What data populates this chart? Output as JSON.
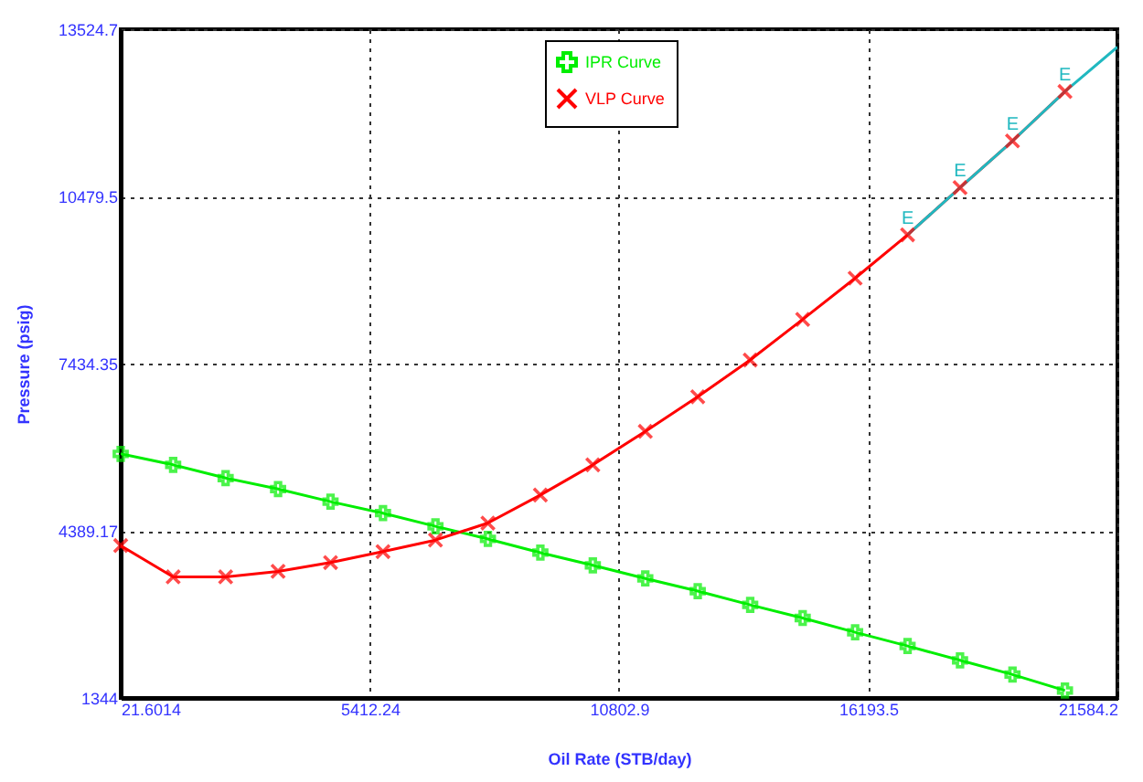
{
  "chart_data": {
    "type": "line",
    "xlabel": "Oil Rate  (STB/day)",
    "ylabel": "Pressure  (psig)",
    "xlim": [
      21.6014,
      21584.2
    ],
    "xticks": [
      21.6014,
      5412.24,
      10802.9,
      16193.5,
      21584.2
    ],
    "ylim": [
      1344,
      13524.7
    ],
    "yticks": [
      1344,
      4389.17,
      7434.35,
      10479.5,
      13524.7
    ],
    "x": [
      21.6014,
      1156.5,
      2291.4,
      3426.3,
      4561.2,
      5696.1,
      6831,
      7965.9,
      9100.8,
      10235.7,
      11370.6,
      12505.5,
      13640.4,
      14775.3,
      15910.2,
      17045.1,
      18180,
      19314.9,
      20449.8
    ],
    "series": [
      {
        "name": "IPR Curve",
        "color": "#00ee00",
        "marker": "cross",
        "values": [
          5790,
          5590,
          5350,
          5150,
          4920,
          4710,
          4470,
          4240,
          3990,
          3760,
          3520,
          3290,
          3040,
          2800,
          2540,
          2290,
          2030,
          1770,
          1480
        ]
      },
      {
        "name": "VLP Curve",
        "color": "#ff0000",
        "marker": "x",
        "values": [
          4120,
          3550,
          3550,
          3650,
          3810,
          4010,
          4220,
          4530,
          5040,
          5590,
          6200,
          6830,
          7500,
          8240,
          8990,
          9780,
          10640,
          11490,
          12390
        ]
      },
      {
        "color": "#20b8c0",
        "marker": "none",
        "x": [
          17045.1,
          18180,
          19314.9,
          20449.8,
          21584.2
        ],
        "values": [
          9780,
          10640,
          11490,
          12390,
          13200
        ]
      }
    ],
    "annotations": [
      {
        "text": "E",
        "x": 17045.1,
        "y": 9780
      },
      {
        "text": "E",
        "x": 18180,
        "y": 10640
      },
      {
        "text": "E",
        "x": 19314.9,
        "y": 11490
      },
      {
        "text": "E",
        "x": 20449.8,
        "y": 12390
      }
    ],
    "grid": true,
    "line_style": "solid",
    "legend": "top"
  }
}
